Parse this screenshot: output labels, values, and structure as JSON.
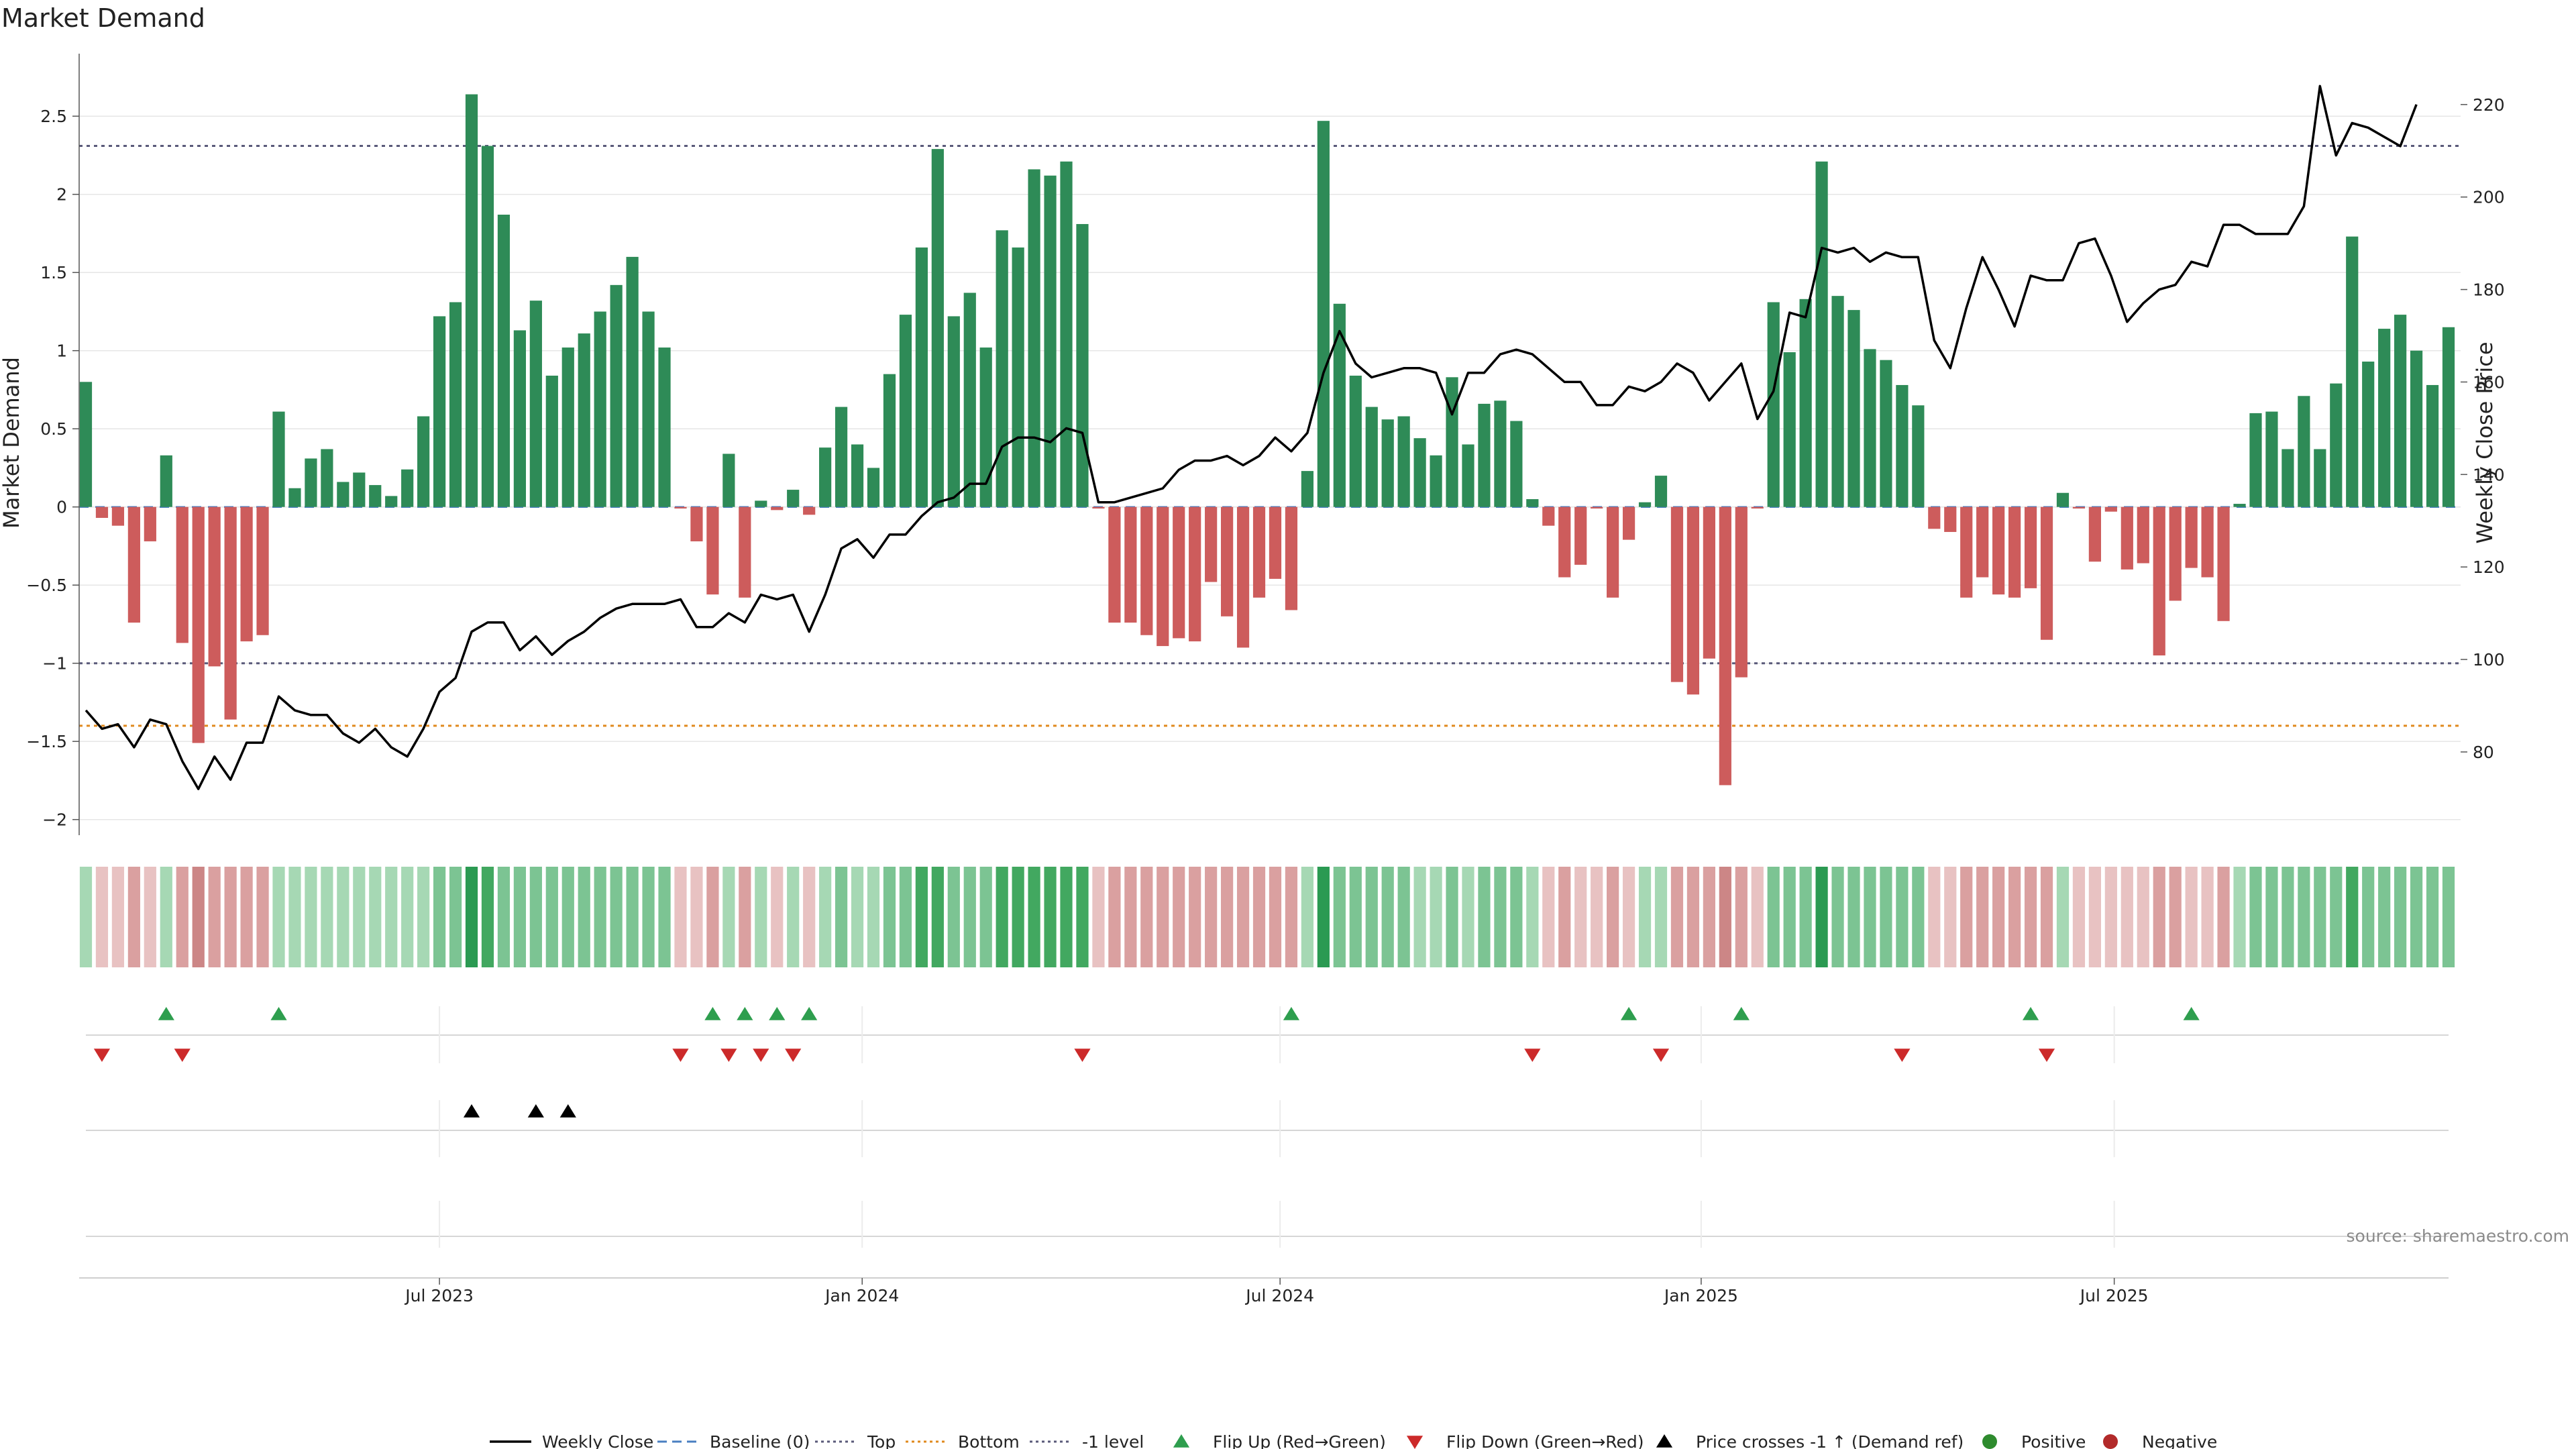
{
  "chart_data": {
    "type": "bar",
    "title": "Market Demand",
    "ylabel_left": "Market Demand",
    "ylabel_right": "Weekly Close Price",
    "ylim_left": [
      -2.1,
      2.9
    ],
    "yticks_left": [
      -2,
      -1.5,
      -1,
      -0.5,
      0,
      0.5,
      1,
      1.5,
      2,
      2.5
    ],
    "ytick_labels_left": [
      "−2",
      "−1.5",
      "−1",
      "−0.5",
      "0",
      "0.5",
      "1",
      "1.5",
      "2",
      "2.5"
    ],
    "ylim_right": [
      62,
      231
    ],
    "yticks_right": [
      80,
      100,
      120,
      140,
      160,
      180,
      200,
      220
    ],
    "x_ticks": [
      {
        "week": 22,
        "label": "Jul 2023"
      },
      {
        "week": 48.3,
        "label": "Jan 2024"
      },
      {
        "week": 74.3,
        "label": "Jul 2024"
      },
      {
        "week": 100.5,
        "label": "Jan 2025"
      },
      {
        "week": 126.2,
        "label": "Jul 2025"
      }
    ],
    "reference_lines": {
      "top": 2.31,
      "bottom": -1.4,
      "minus_one": -1.0,
      "baseline": 0
    },
    "colors": {
      "positive": "#2e8b57",
      "negative": "#cd5c5c",
      "close_line": "#000000",
      "top_line": "#5a5a7a",
      "bottom_line": "#e08a1e",
      "flip_up": "#2e9e4e",
      "flip_down": "#cc2a2a",
      "cross": "#000000",
      "grid": "#e6e6e6"
    },
    "demand": [
      0.8,
      -0.07,
      -0.12,
      -0.74,
      -0.22,
      0.33,
      -0.87,
      -1.51,
      -1.02,
      -1.36,
      -0.86,
      -0.82,
      0.61,
      0.12,
      0.31,
      0.37,
      0.16,
      0.22,
      0.14,
      0.07,
      0.24,
      0.58,
      1.22,
      1.31,
      2.64,
      2.31,
      1.87,
      1.13,
      1.32,
      0.84,
      1.02,
      1.11,
      1.25,
      1.42,
      1.6,
      1.25,
      1.02,
      -0.01,
      -0.22,
      -0.56,
      0.34,
      -0.58,
      0.04,
      -0.02,
      0.11,
      -0.05,
      0.38,
      0.64,
      0.4,
      0.25,
      0.85,
      1.23,
      1.66,
      2.29,
      1.22,
      1.37,
      1.02,
      1.77,
      1.66,
      2.16,
      2.12,
      2.21,
      1.81,
      -0.01,
      -0.74,
      -0.74,
      -0.82,
      -0.89,
      -0.84,
      -0.86,
      -0.48,
      -0.7,
      -0.9,
      -0.58,
      -0.46,
      -0.66,
      0.23,
      2.47,
      1.3,
      0.84,
      0.64,
      0.56,
      0.58,
      0.44,
      0.33,
      0.83,
      0.4,
      0.66,
      0.68,
      0.55,
      0.05,
      -0.12,
      -0.45,
      -0.37,
      -0.01,
      -0.58,
      -0.21,
      0.03,
      0.2,
      -1.12,
      -1.2,
      -0.97,
      -1.78,
      -1.09,
      -0.01,
      1.31,
      0.99,
      1.33,
      2.21,
      1.35,
      1.26,
      1.01,
      0.94,
      0.78,
      0.65,
      -0.14,
      -0.16,
      -0.58,
      -0.45,
      -0.56,
      -0.58,
      -0.52,
      -0.85,
      0.09,
      -0.01,
      -0.35,
      -0.03,
      -0.4,
      -0.36,
      -0.95,
      -0.6,
      -0.39,
      -0.45,
      -0.73,
      0.02,
      0.6,
      0.61,
      0.37,
      0.71,
      0.37,
      0.79,
      1.73,
      0.93,
      1.14,
      1.23,
      1.0,
      0.78,
      1.15
    ],
    "weekly_close": [
      89,
      85,
      86,
      81,
      87,
      86,
      78,
      72,
      79,
      74,
      82,
      82,
      92,
      89,
      88,
      88,
      84,
      82,
      85,
      81,
      79,
      85,
      93,
      96,
      106,
      108,
      108,
      102,
      105,
      101,
      104,
      106,
      109,
      111,
      112,
      112,
      112,
      113,
      107,
      107,
      110,
      108,
      114,
      113,
      114,
      106,
      114,
      124,
      126,
      122,
      127,
      127,
      131,
      134,
      135,
      138,
      138,
      146,
      148,
      148,
      147,
      150,
      149,
      134,
      134,
      135,
      136,
      137,
      141,
      143,
      143,
      144,
      142,
      144,
      148,
      145,
      149,
      162,
      171,
      164,
      161,
      162,
      163,
      163,
      162,
      153,
      162,
      162,
      166,
      167,
      166,
      163,
      160,
      160,
      155,
      155,
      159,
      158,
      160,
      164,
      162,
      156,
      160,
      164,
      152,
      158,
      175,
      174,
      189,
      188,
      189,
      186,
      188,
      187,
      187,
      169,
      163,
      176,
      187,
      180,
      172,
      183,
      182,
      182,
      190,
      191,
      183,
      173,
      177,
      180,
      181,
      186,
      185,
      194,
      194,
      192,
      192,
      192,
      198,
      224,
      209,
      216,
      215,
      213,
      211,
      220
    ],
    "strip_intensity": [
      1,
      1,
      1,
      2,
      1,
      1,
      2,
      3,
      2,
      2,
      2,
      2,
      1,
      1,
      1,
      1,
      1,
      1,
      1,
      1,
      1,
      1,
      2,
      2,
      4,
      3,
      2,
      2,
      2,
      2,
      2,
      2,
      2,
      2,
      2,
      2,
      2,
      1,
      1,
      2,
      1,
      2,
      1,
      1,
      1,
      1,
      1,
      2,
      1,
      1,
      2,
      2,
      3,
      3,
      2,
      2,
      2,
      3,
      3,
      3,
      3,
      3,
      3,
      1,
      2,
      2,
      2,
      2,
      2,
      2,
      2,
      2,
      2,
      2,
      2,
      2,
      1,
      4,
      2,
      2,
      2,
      2,
      2,
      1,
      1,
      2,
      1,
      2,
      2,
      2,
      1,
      1,
      2,
      1,
      1,
      2,
      1,
      1,
      1,
      2,
      2,
      2,
      3,
      2,
      1,
      2,
      2,
      2,
      4,
      2,
      2,
      2,
      2,
      2,
      2,
      1,
      1,
      2,
      2,
      2,
      2,
      2,
      2,
      1,
      1,
      1,
      1,
      1,
      1,
      2,
      2,
      1,
      1,
      2,
      1,
      2,
      2,
      2,
      2,
      2,
      2,
      3,
      2,
      2,
      2,
      2,
      2,
      2
    ],
    "flip_up_weeks": [
      5,
      12,
      39,
      41,
      43,
      45,
      75,
      96,
      103,
      121,
      131
    ],
    "flip_down_weeks": [
      1,
      6,
      37,
      40,
      42,
      44,
      62,
      90,
      98,
      113,
      122
    ],
    "price_cross_weeks": [
      24,
      28,
      30
    ]
  },
  "legend": [
    {
      "label": "Weekly Close",
      "marker": "line-solid"
    },
    {
      "label": "Baseline (0)",
      "marker": "line-dash-blue"
    },
    {
      "label": "Top",
      "marker": "line-dot-grey"
    },
    {
      "label": "Bottom",
      "marker": "line-dot-orange"
    },
    {
      "label": "-1 level",
      "marker": "line-dot-grey"
    },
    {
      "label": "Flip Up (Red→Green)",
      "marker": "triangle-up-green"
    },
    {
      "label": "Flip Down (Green→Red)",
      "marker": "triangle-down-red"
    },
    {
      "label": "Price crosses -1 ↑ (Demand ref)",
      "marker": "triangle-up-black"
    },
    {
      "label": "Positive",
      "marker": "circle-green"
    },
    {
      "label": "Negative",
      "marker": "circle-red"
    }
  ],
  "source": "source: sharemaestro.com"
}
